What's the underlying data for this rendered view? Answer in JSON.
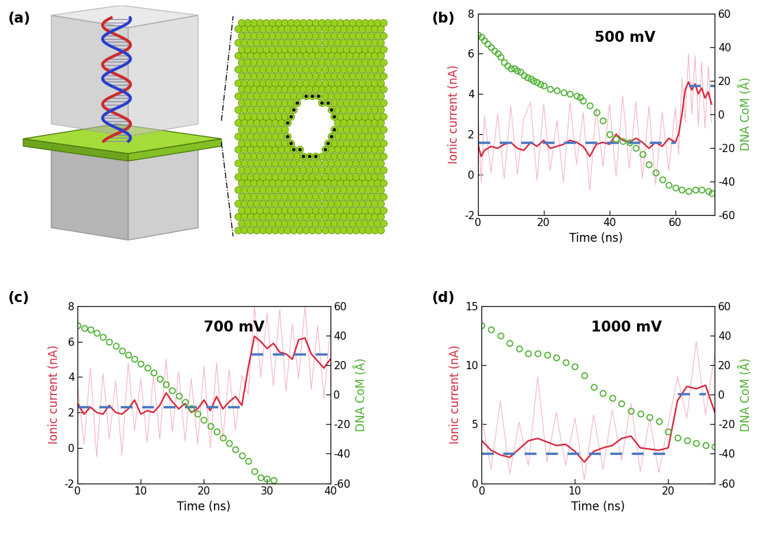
{
  "chart_data": [
    {
      "type": "illustration",
      "label": "(a)"
    },
    {
      "type": "line",
      "label": "(b)",
      "title": "500 mV",
      "xlabel": "Time (ns)",
      "ylabel": "Ionic current (nA)",
      "y2label": "DNA CoM (Å)",
      "xlim": [
        0,
        72
      ],
      "xticks": [
        0,
        20,
        40,
        60
      ],
      "ylim": [
        -2,
        8
      ],
      "yticks": [
        -2,
        0,
        2,
        4,
        6,
        8
      ],
      "y2lim": [
        -60,
        60
      ],
      "y2ticks": [
        -60,
        -40,
        -20,
        0,
        20,
        40,
        60
      ],
      "series": [
        {
          "color": "#f7b6c4",
          "line_style": "solid",
          "axis": "y",
          "x": [
            0,
            1,
            2,
            4,
            6,
            8,
            10,
            12,
            14,
            16,
            18,
            20,
            22,
            24,
            26,
            28,
            30,
            32,
            34,
            36,
            38,
            40,
            42,
            44,
            46,
            48,
            50,
            52,
            54,
            56,
            58,
            60,
            61,
            62,
            63,
            64,
            65,
            66,
            67,
            68,
            69,
            70,
            71
          ],
          "values": [
            3.2,
            -0.4,
            2.9,
            0.1,
            3.0,
            -0.2,
            3.4,
            0.0,
            2.8,
            3.6,
            -0.3,
            3.5,
            0.2,
            2.7,
            -0.4,
            3.6,
            0.5,
            3.1,
            -0.8,
            3.3,
            0.4,
            3.5,
            -0.1,
            3.9,
            0.3,
            3.6,
            -0.2,
            3.4,
            -0.5,
            3.1,
            0.2,
            3.3,
            1.0,
            4.8,
            2.6,
            6.0,
            3.0,
            5.9,
            2.4,
            5.6,
            2.3,
            5.4,
            2.6
          ]
        },
        {
          "color": "#d7263d",
          "line_style": "solid",
          "axis": "y",
          "x": [
            0,
            1,
            2,
            4,
            6,
            8,
            10,
            12,
            14,
            16,
            18,
            20,
            22,
            24,
            26,
            28,
            30,
            32,
            34,
            36,
            38,
            40,
            42,
            44,
            46,
            48,
            50,
            52,
            54,
            56,
            58,
            60,
            61,
            62,
            63,
            64,
            65,
            66,
            67,
            68,
            69,
            70,
            71
          ],
          "values": [
            1.5,
            0.9,
            1.2,
            1.4,
            1.3,
            1.5,
            1.6,
            1.3,
            1.2,
            1.6,
            1.4,
            1.7,
            1.3,
            1.4,
            1.5,
            1.7,
            1.6,
            1.4,
            0.9,
            1.5,
            1.6,
            1.5,
            2.0,
            1.7,
            1.6,
            1.8,
            1.6,
            1.3,
            1.6,
            1.4,
            1.8,
            1.6,
            2.0,
            3.0,
            4.2,
            4.6,
            4.2,
            4.5,
            4.0,
            4.3,
            3.8,
            4.1,
            3.5
          ]
        },
        {
          "color": "#4a78c2",
          "line_style": "dashed",
          "axis": "y",
          "x": [
            0,
            60,
            61,
            64,
            72
          ],
          "values": [
            1.6,
            1.6,
            null,
            4.4,
            4.4
          ]
        },
        {
          "color": "#4caf30",
          "line_style": "none",
          "marker": "circle",
          "axis": "y2",
          "x": [
            0,
            1,
            2,
            3,
            4,
            5,
            6,
            7,
            8,
            9,
            10,
            11,
            12,
            13,
            14,
            15,
            16,
            17,
            18,
            19,
            20,
            22,
            24,
            26,
            28,
            30,
            31,
            32,
            34,
            36,
            38,
            40,
            42,
            44,
            46,
            48,
            50,
            52,
            54,
            56,
            58,
            60,
            62,
            64,
            66,
            68,
            70,
            71
          ],
          "values": [
            47,
            46,
            44,
            42,
            40,
            38,
            36,
            34,
            31,
            29,
            27,
            27,
            26,
            25,
            23,
            22,
            21,
            20,
            19,
            18,
            17,
            15,
            14,
            13,
            12,
            11,
            10,
            8,
            5,
            1,
            -4,
            -12,
            -15,
            -16,
            -17,
            -20,
            -24,
            -30,
            -35,
            -39,
            -42,
            -44,
            -45,
            -46,
            -45,
            -45,
            -46,
            -47
          ]
        }
      ]
    },
    {
      "type": "line",
      "label": "(c)",
      "title": "700 mV",
      "xlabel": "Time (ns)",
      "ylabel": "Ionic current (nA)",
      "y2label": "DNA CoM (Å)",
      "xlim": [
        0,
        40
      ],
      "xticks": [
        0,
        10,
        20,
        30,
        40
      ],
      "ylim": [
        -2,
        8
      ],
      "yticks": [
        -2,
        0,
        2,
        4,
        6,
        8
      ],
      "y2lim": [
        -60,
        60
      ],
      "y2ticks": [
        -60,
        -40,
        -20,
        0,
        20,
        40,
        60
      ],
      "series": [
        {
          "color": "#f7b6c4",
          "line_style": "solid",
          "axis": "y",
          "x": [
            0,
            1,
            2,
            3,
            4,
            5,
            6,
            7,
            8,
            9,
            10,
            11,
            12,
            13,
            14,
            15,
            16,
            17,
            18,
            19,
            20,
            21,
            22,
            23,
            24,
            25,
            26,
            27,
            28,
            29,
            30,
            31,
            32,
            33,
            34,
            35,
            36,
            37,
            38,
            39,
            40
          ],
          "values": [
            3.5,
            0.2,
            4.5,
            -0.5,
            4.2,
            0.5,
            3.8,
            -0.4,
            4.8,
            1.0,
            3.9,
            0.3,
            4.1,
            0.5,
            5.0,
            0.9,
            4.3,
            0.4,
            3.9,
            0.2,
            4.6,
            0.0,
            4.8,
            0.5,
            4.4,
            1.0,
            4.1,
            3.0,
            8.0,
            4.0,
            7.6,
            3.5,
            7.8,
            3.2,
            7.0,
            3.9,
            8.0,
            3.3,
            6.9,
            2.8,
            6.6
          ]
        },
        {
          "color": "#d7263d",
          "line_style": "solid",
          "axis": "y",
          "x": [
            0,
            1,
            2,
            3,
            4,
            5,
            6,
            7,
            8,
            9,
            10,
            11,
            12,
            13,
            14,
            15,
            16,
            17,
            18,
            19,
            20,
            21,
            22,
            23,
            24,
            25,
            26,
            27,
            28,
            29,
            30,
            31,
            32,
            33,
            34,
            35,
            36,
            37,
            38,
            39,
            40
          ],
          "values": [
            2.5,
            1.9,
            2.3,
            2.0,
            1.9,
            2.4,
            2.0,
            1.9,
            2.2,
            2.7,
            1.9,
            2.1,
            2.0,
            2.4,
            3.1,
            2.6,
            2.2,
            2.5,
            2.0,
            2.2,
            2.7,
            2.1,
            2.9,
            2.2,
            2.6,
            2.9,
            2.4,
            4.5,
            6.3,
            6.0,
            5.6,
            5.9,
            5.4,
            5.3,
            5.0,
            6.1,
            6.2,
            5.3,
            4.9,
            4.5,
            5.0
          ]
        },
        {
          "color": "#4a78c2",
          "line_style": "dashed",
          "axis": "y",
          "x": [
            0,
            27,
            27.2,
            27.5,
            40
          ],
          "values": [
            2.3,
            2.3,
            null,
            5.3,
            5.3
          ]
        },
        {
          "color": "#4caf30",
          "line_style": "none",
          "marker": "circle",
          "axis": "y2",
          "x": [
            0,
            1,
            2,
            3,
            4,
            5,
            6,
            7,
            8,
            9,
            10,
            11,
            12,
            13,
            14,
            15,
            16,
            17,
            18,
            19,
            20,
            21,
            22,
            23,
            24,
            25,
            26,
            27,
            28,
            29,
            30,
            31
          ],
          "values": [
            47,
            45,
            44,
            42,
            39,
            36,
            33,
            30,
            27,
            24,
            21,
            18,
            15,
            11,
            7,
            3,
            -1,
            -5,
            -9,
            -13,
            -17,
            -21,
            -25,
            -29,
            -33,
            -37,
            -41,
            -45,
            -52,
            -56,
            -57,
            -58
          ]
        }
      ]
    },
    {
      "type": "line",
      "label": "(d)",
      "title": "1000 mV",
      "xlabel": "Time (ns)",
      "ylabel": "Ionic current (nA)",
      "y2label": "DNA CoM (Å)",
      "xlim": [
        0,
        25
      ],
      "xticks": [
        0,
        10,
        20
      ],
      "ylim": [
        0,
        15
      ],
      "yticks": [
        0,
        5,
        10,
        15
      ],
      "y2lim": [
        -60,
        60
      ],
      "y2ticks": [
        -60,
        -40,
        -20,
        0,
        20,
        40,
        60
      ],
      "series": [
        {
          "color": "#f7b6c4",
          "line_style": "solid",
          "axis": "y",
          "x": [
            0,
            1,
            2,
            3,
            4,
            5,
            6,
            7,
            8,
            9,
            10,
            11,
            12,
            13,
            14,
            15,
            16,
            17,
            18,
            19,
            20,
            21,
            22,
            23,
            24,
            25
          ],
          "values": [
            5.5,
            1.2,
            7.0,
            0.8,
            5.2,
            1.5,
            9.0,
            1.8,
            6.0,
            1.5,
            5.5,
            0.3,
            5.8,
            1.2,
            6.2,
            1.9,
            6.8,
            1.0,
            5.5,
            0.9,
            5.0,
            9.0,
            5.5,
            12.0,
            5.8,
            11.0
          ]
        },
        {
          "color": "#d7263d",
          "line_style": "solid",
          "axis": "y",
          "x": [
            0,
            1,
            2,
            3,
            4,
            5,
            6,
            7,
            8,
            9,
            10,
            11,
            12,
            13,
            14,
            15,
            16,
            17,
            18,
            19,
            20,
            21,
            22,
            23,
            24,
            25
          ],
          "values": [
            3.6,
            2.8,
            2.4,
            2.2,
            2.9,
            3.6,
            3.8,
            3.5,
            3.2,
            3.3,
            2.7,
            1.8,
            2.7,
            3.0,
            3.2,
            3.8,
            4.0,
            3.0,
            2.9,
            2.8,
            3.0,
            7.0,
            8.2,
            8.0,
            8.3,
            6.0
          ]
        },
        {
          "color": "#4a78c2",
          "line_style": "dashed",
          "axis": "y",
          "x": [
            0,
            20.5,
            20.8,
            21,
            24
          ],
          "values": [
            2.5,
            2.5,
            null,
            7.6,
            7.6
          ]
        },
        {
          "color": "#4caf30",
          "line_style": "none",
          "marker": "circle",
          "axis": "y2",
          "x": [
            0,
            1,
            2,
            3,
            4,
            5,
            6,
            7,
            8,
            9,
            10,
            11,
            12,
            13,
            14,
            15,
            16,
            17,
            18,
            19,
            20,
            21,
            22,
            23,
            24,
            25
          ],
          "values": [
            47,
            44,
            40,
            35,
            31,
            28,
            28,
            27,
            25,
            22,
            19,
            13,
            5,
            1,
            -2,
            -6,
            -11,
            -13,
            -15,
            -18,
            -25,
            -29,
            -31,
            -33,
            -34,
            -35
          ]
        }
      ]
    }
  ]
}
